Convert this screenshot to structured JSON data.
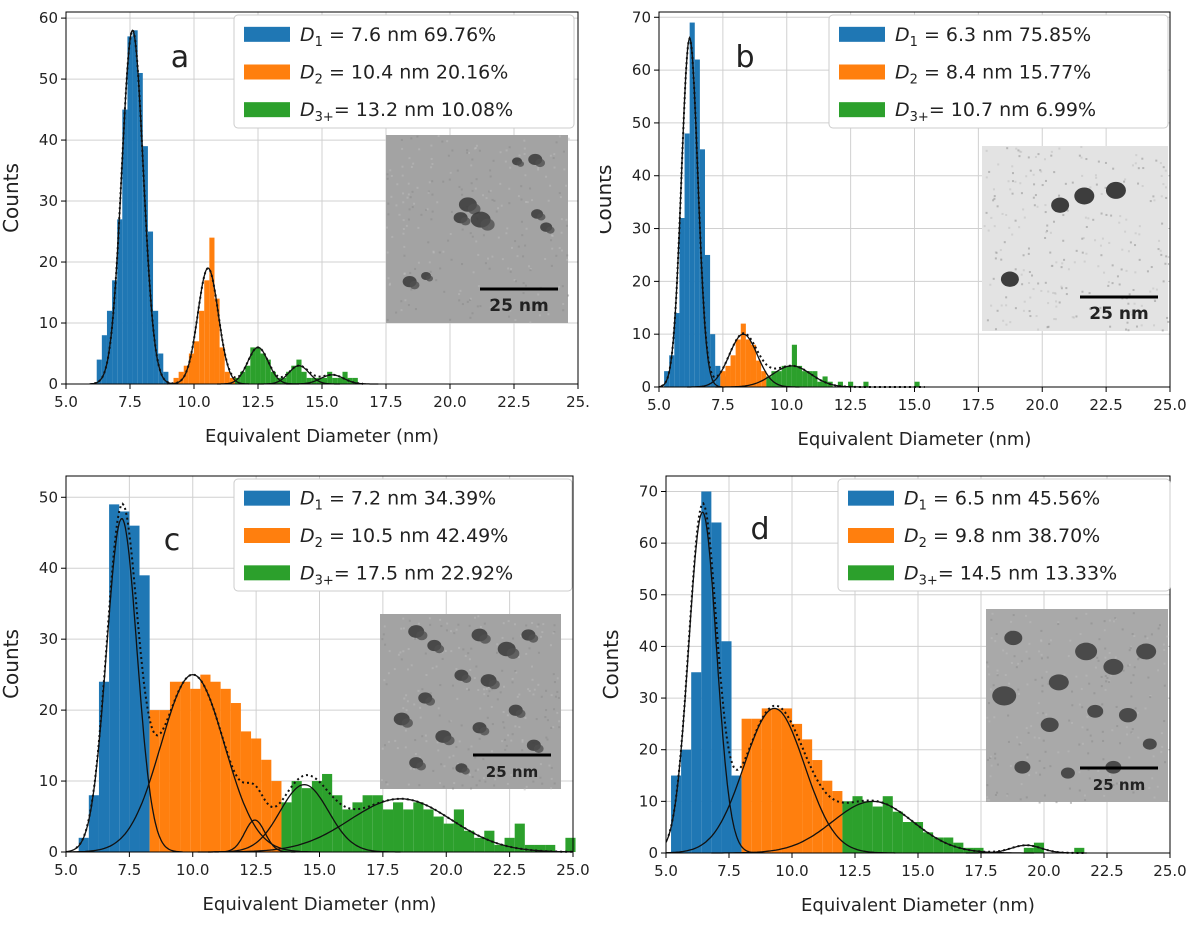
{
  "colors": {
    "d1": "#1f77b4",
    "d2": "#ff7f0e",
    "d3": "#2ca02c",
    "grid": "#d0d0d0",
    "fit": "#111111"
  },
  "chart_data": [
    {
      "id": "a",
      "type": "bar",
      "panel_letter": "a",
      "xlabel": "Equivalent Diameter (nm)",
      "ylabel": "Counts",
      "xlim": [
        5.0,
        25.0
      ],
      "ylim": [
        0,
        61
      ],
      "xticks": [
        "5.0",
        "7.5",
        "10.0",
        "12.5",
        "15.0",
        "17.5",
        "20.0",
        "22.5",
        "25."
      ],
      "yticks": [
        "0",
        "10",
        "20",
        "30",
        "40",
        "50",
        "60"
      ],
      "legend": {
        "position": "top-right",
        "entries": [
          {
            "sym": "D",
            "sub": "1",
            "text": "   = 7.6 nm   69.76%"
          },
          {
            "sym": "D",
            "sub": "2",
            "text": "   = 10.4 nm 20.16%"
          },
          {
            "sym": "D",
            "sub": "3+",
            "text": "= 13.2 nm 10.08%"
          }
        ]
      },
      "inset": {
        "scale_label": "25 nm",
        "style": "agglomerate"
      },
      "components": [
        {
          "mu": 7.6,
          "sigma": 0.42,
          "amp": 58,
          "color": "d1"
        },
        {
          "mu": 10.55,
          "sigma": 0.4,
          "amp": 19,
          "color": "d2"
        },
        {
          "mu": 12.5,
          "sigma": 0.4,
          "amp": 6,
          "color": "d3"
        },
        {
          "mu": 14.1,
          "sigma": 0.4,
          "amp": 3,
          "color": "d3"
        },
        {
          "mu": 15.4,
          "sigma": 0.45,
          "amp": 1.5,
          "color": "d3"
        }
      ],
      "series": [
        {
          "name": "D1",
          "color": "d1",
          "bins": [
            [
              6.2,
              4
            ],
            [
              6.4,
              8
            ],
            [
              6.6,
              12
            ],
            [
              6.8,
              17
            ],
            [
              7.0,
              27
            ],
            [
              7.2,
              45
            ],
            [
              7.4,
              57
            ],
            [
              7.6,
              58
            ],
            [
              7.8,
              51
            ],
            [
              8.0,
              39
            ],
            [
              8.2,
              25
            ],
            [
              8.4,
              12
            ],
            [
              8.6,
              5
            ],
            [
              8.8,
              2
            ]
          ]
        },
        {
          "name": "D2",
          "color": "d2",
          "bins": [
            [
              9.2,
              1
            ],
            [
              9.4,
              2
            ],
            [
              9.6,
              3
            ],
            [
              9.8,
              5
            ],
            [
              10.0,
              7
            ],
            [
              10.2,
              12
            ],
            [
              10.4,
              17
            ],
            [
              10.6,
              24
            ],
            [
              10.8,
              14
            ],
            [
              11.0,
              6
            ],
            [
              11.2,
              2
            ],
            [
              11.4,
              1
            ]
          ]
        },
        {
          "name": "D3+",
          "color": "d3",
          "bins": [
            [
              11.6,
              1
            ],
            [
              11.8,
              2
            ],
            [
              12.0,
              3
            ],
            [
              12.2,
              6
            ],
            [
              12.4,
              6
            ],
            [
              12.6,
              5
            ],
            [
              12.8,
              4
            ],
            [
              13.0,
              2
            ],
            [
              13.2,
              1
            ],
            [
              13.4,
              1
            ],
            [
              13.6,
              2
            ],
            [
              13.8,
              3
            ],
            [
              14.0,
              4
            ],
            [
              14.2,
              2
            ],
            [
              14.4,
              1
            ],
            [
              14.6,
              1
            ],
            [
              14.8,
              1
            ],
            [
              15.0,
              1
            ],
            [
              15.2,
              2
            ],
            [
              15.4,
              1
            ],
            [
              15.6,
              1
            ],
            [
              15.8,
              2
            ],
            [
              16.0,
              1
            ],
            [
              16.2,
              1
            ]
          ]
        }
      ]
    },
    {
      "id": "b",
      "type": "bar",
      "panel_letter": "b",
      "xlabel": "Equivalent Diameter (nm)",
      "ylabel": "Counts",
      "xlim": [
        5.0,
        25.0
      ],
      "ylim": [
        0,
        71
      ],
      "xticks": [
        "5.0",
        "7.5",
        "10.0",
        "12.5",
        "15.0",
        "17.5",
        "20.0",
        "22.5",
        "25.0"
      ],
      "yticks": [
        "0",
        "10",
        "20",
        "30",
        "40",
        "50",
        "60",
        "70"
      ],
      "legend": {
        "position": "top-right",
        "entries": [
          {
            "sym": "D",
            "sub": "1",
            "text": "   = 6.3 nm   75.85%"
          },
          {
            "sym": "D",
            "sub": "2",
            "text": "   = 8.4 nm   15.77%"
          },
          {
            "sym": "D",
            "sub": "3+",
            "text": "= 10.7 nm 6.99%"
          }
        ]
      },
      "inset": {
        "scale_label": "25 nm",
        "style": "particles-light"
      },
      "components": [
        {
          "mu": 6.2,
          "sigma": 0.32,
          "amp": 66,
          "color": "d1"
        },
        {
          "mu": 8.3,
          "sigma": 0.55,
          "amp": 10,
          "color": "d2"
        },
        {
          "mu": 10.2,
          "sigma": 0.75,
          "amp": 4,
          "color": "d3"
        }
      ],
      "series": [
        {
          "name": "D1",
          "color": "d1",
          "bins": [
            [
              5.2,
              3
            ],
            [
              5.4,
              6
            ],
            [
              5.6,
              14
            ],
            [
              5.8,
              32
            ],
            [
              6.0,
              48
            ],
            [
              6.2,
              69
            ],
            [
              6.4,
              62
            ],
            [
              6.6,
              45
            ],
            [
              6.8,
              25
            ],
            [
              7.0,
              10
            ],
            [
              7.2,
              4
            ],
            [
              7.4,
              2
            ]
          ]
        },
        {
          "name": "D2",
          "color": "d2",
          "bins": [
            [
              7.4,
              3
            ],
            [
              7.6,
              4
            ],
            [
              7.8,
              6
            ],
            [
              8.0,
              9
            ],
            [
              8.2,
              12
            ],
            [
              8.4,
              9
            ],
            [
              8.6,
              8
            ],
            [
              8.8,
              5
            ],
            [
              9.0,
              3
            ],
            [
              9.2,
              1
            ]
          ]
        },
        {
          "name": "D3+",
          "color": "d3",
          "bins": [
            [
              9.2,
              2
            ],
            [
              9.4,
              3
            ],
            [
              9.6,
              3
            ],
            [
              9.8,
              4
            ],
            [
              10.0,
              4
            ],
            [
              10.2,
              8
            ],
            [
              10.4,
              4
            ],
            [
              10.6,
              3
            ],
            [
              10.8,
              3
            ],
            [
              11.0,
              3
            ],
            [
              11.2,
              1
            ],
            [
              11.4,
              2
            ],
            [
              11.6,
              1
            ],
            [
              12.0,
              1
            ],
            [
              12.4,
              1
            ],
            [
              13.0,
              1
            ],
            [
              15.0,
              1
            ]
          ]
        }
      ]
    },
    {
      "id": "c",
      "type": "bar",
      "panel_letter": "c",
      "xlabel": "Equivalent Diameter (nm)",
      "ylabel": "Counts",
      "xlim": [
        5.0,
        25.0
      ],
      "ylim": [
        0,
        53
      ],
      "xticks": [
        "5.0",
        "7.5",
        "10.0",
        "12.5",
        "15.0",
        "17.5",
        "20.0",
        "22.5",
        "25.0"
      ],
      "yticks": [
        "0",
        "10",
        "20",
        "30",
        "40",
        "50"
      ],
      "legend": {
        "position": "top-right",
        "entries": [
          {
            "sym": "D",
            "sub": "1",
            "text": "   = 7.2 nm   34.39%"
          },
          {
            "sym": "D",
            "sub": "2",
            "text": "   = 10.5 nm 42.49%"
          },
          {
            "sym": "D",
            "sub": "3+",
            "text": "= 17.5 nm 22.92%"
          }
        ]
      },
      "inset": {
        "scale_label": "25 nm",
        "style": "agglomerate"
      },
      "components": [
        {
          "mu": 7.2,
          "sigma": 0.6,
          "amp": 47,
          "color": "d1"
        },
        {
          "mu": 10.0,
          "sigma": 1.25,
          "amp": 25,
          "color": "d2"
        },
        {
          "mu": 12.45,
          "sigma": 0.4,
          "amp": 4.5,
          "color": "d2"
        },
        {
          "mu": 14.4,
          "sigma": 0.95,
          "amp": 9.5,
          "color": "d3"
        },
        {
          "mu": 18.2,
          "sigma": 2.0,
          "amp": 7.5,
          "color": "d3"
        }
      ],
      "series": [
        {
          "name": "D1",
          "color": "d1",
          "bins": [
            [
              5.5,
              2
            ],
            [
              5.9,
              8
            ],
            [
              6.3,
              24
            ],
            [
              6.7,
              49
            ],
            [
              7.1,
              48
            ],
            [
              7.5,
              46
            ],
            [
              7.9,
              39
            ]
          ]
        },
        {
          "name": "D2",
          "color": "d2",
          "bins": [
            [
              8.3,
              20
            ],
            [
              8.7,
              20
            ],
            [
              9.1,
              24
            ],
            [
              9.5,
              24
            ],
            [
              9.9,
              23
            ],
            [
              10.3,
              25
            ],
            [
              10.7,
              24
            ],
            [
              11.1,
              23
            ],
            [
              11.5,
              21
            ],
            [
              11.9,
              17
            ],
            [
              12.3,
              16
            ],
            [
              12.7,
              13
            ],
            [
              13.1,
              10
            ]
          ]
        },
        {
          "name": "D3+",
          "color": "d3",
          "bins": [
            [
              13.5,
              7
            ],
            [
              13.9,
              10
            ],
            [
              14.3,
              9
            ],
            [
              14.7,
              10
            ],
            [
              15.1,
              11
            ],
            [
              15.5,
              8
            ],
            [
              15.9,
              6
            ],
            [
              16.3,
              7
            ],
            [
              16.7,
              8
            ],
            [
              17.1,
              8
            ],
            [
              17.5,
              6
            ],
            [
              17.9,
              7
            ],
            [
              18.3,
              6
            ],
            [
              18.7,
              7
            ],
            [
              19.1,
              6
            ],
            [
              19.5,
              5
            ],
            [
              19.9,
              4
            ],
            [
              20.3,
              6
            ],
            [
              20.7,
              3
            ],
            [
              21.1,
              2
            ],
            [
              21.5,
              3
            ],
            [
              21.9,
              1
            ],
            [
              22.3,
              2
            ],
            [
              22.7,
              4
            ],
            [
              23.1,
              1
            ],
            [
              23.5,
              1
            ],
            [
              23.9,
              1
            ],
            [
              24.7,
              2
            ]
          ]
        }
      ]
    },
    {
      "id": "d",
      "type": "bar",
      "panel_letter": "d",
      "xlabel": "Equivalent Diameter (nm)",
      "ylabel": "Counts",
      "xlim": [
        5.0,
        25.0
      ],
      "ylim": [
        0,
        73
      ],
      "xticks": [
        "5.0",
        "7.5",
        "10.0",
        "12.5",
        "15.0",
        "17.5",
        "20.0",
        "22.5",
        "25.0"
      ],
      "yticks": [
        "0",
        "10",
        "20",
        "30",
        "40",
        "50",
        "60",
        "70"
      ],
      "legend": {
        "position": "top-right",
        "entries": [
          {
            "sym": "D",
            "sub": "1",
            "text": "   = 6.5 nm   45.56%"
          },
          {
            "sym": "D",
            "sub": "2",
            "text": "   = 9.8 nm   38.70%"
          },
          {
            "sym": "D",
            "sub": "3+",
            "text": "= 14.5 nm 13.33%"
          }
        ]
      },
      "inset": {
        "scale_label": "25 nm",
        "style": "particles-dark"
      },
      "components": [
        {
          "mu": 6.45,
          "sigma": 0.55,
          "amp": 66,
          "color": "d1"
        },
        {
          "mu": 9.3,
          "sigma": 1.2,
          "amp": 28,
          "color": "d2"
        },
        {
          "mu": 13.2,
          "sigma": 1.6,
          "amp": 10,
          "color": "d3"
        },
        {
          "mu": 19.3,
          "sigma": 0.6,
          "amp": 1.5,
          "color": "d3"
        }
      ],
      "series": [
        {
          "name": "D1",
          "color": "d1",
          "bins": [
            [
              5.2,
              15
            ],
            [
              5.6,
              20
            ],
            [
              6.0,
              35
            ],
            [
              6.4,
              70
            ],
            [
              6.8,
              64
            ],
            [
              7.2,
              41
            ],
            [
              7.6,
              15
            ]
          ]
        },
        {
          "name": "D2",
          "color": "d2",
          "bins": [
            [
              8.0,
              26
            ],
            [
              8.4,
              26
            ],
            [
              8.8,
              28
            ],
            [
              9.2,
              28
            ],
            [
              9.6,
              28
            ],
            [
              10.0,
              25
            ],
            [
              10.4,
              22
            ],
            [
              10.8,
              18
            ],
            [
              11.2,
              14
            ],
            [
              11.6,
              12
            ]
          ]
        },
        {
          "name": "D3+",
          "color": "d3",
          "bins": [
            [
              12.0,
              10
            ],
            [
              12.4,
              11
            ],
            [
              12.8,
              10
            ],
            [
              13.2,
              9
            ],
            [
              13.6,
              11
            ],
            [
              14.0,
              8
            ],
            [
              14.4,
              6
            ],
            [
              14.8,
              6
            ],
            [
              15.2,
              4
            ],
            [
              15.6,
              3
            ],
            [
              16.0,
              3
            ],
            [
              16.4,
              2
            ],
            [
              16.8,
              1
            ],
            [
              17.2,
              1
            ],
            [
              19.2,
              1
            ],
            [
              19.6,
              2
            ],
            [
              21.2,
              1
            ]
          ]
        }
      ]
    }
  ]
}
